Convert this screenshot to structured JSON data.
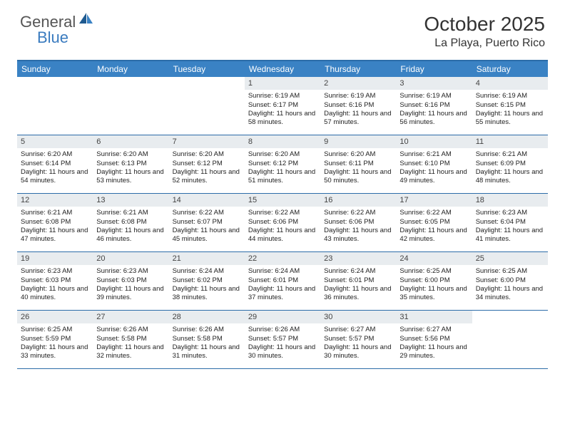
{
  "logo": {
    "part1": "General",
    "part2": "Blue"
  },
  "title": "October 2025",
  "location": "La Playa, Puerto Rico",
  "weekdays": [
    "Sunday",
    "Monday",
    "Tuesday",
    "Wednesday",
    "Thursday",
    "Friday",
    "Saturday"
  ],
  "colors": {
    "header_bar": "#3a82c4",
    "rule": "#2c6ca8",
    "daynum_bg": "#e8ecef",
    "logo_gray": "#555555",
    "logo_blue": "#3a7bbf"
  },
  "weeks": [
    [
      null,
      null,
      null,
      {
        "n": "1",
        "sunrise": "6:19 AM",
        "sunset": "6:17 PM",
        "dl": "11 hours and 58 minutes."
      },
      {
        "n": "2",
        "sunrise": "6:19 AM",
        "sunset": "6:16 PM",
        "dl": "11 hours and 57 minutes."
      },
      {
        "n": "3",
        "sunrise": "6:19 AM",
        "sunset": "6:16 PM",
        "dl": "11 hours and 56 minutes."
      },
      {
        "n": "4",
        "sunrise": "6:19 AM",
        "sunset": "6:15 PM",
        "dl": "11 hours and 55 minutes."
      }
    ],
    [
      {
        "n": "5",
        "sunrise": "6:20 AM",
        "sunset": "6:14 PM",
        "dl": "11 hours and 54 minutes."
      },
      {
        "n": "6",
        "sunrise": "6:20 AM",
        "sunset": "6:13 PM",
        "dl": "11 hours and 53 minutes."
      },
      {
        "n": "7",
        "sunrise": "6:20 AM",
        "sunset": "6:12 PM",
        "dl": "11 hours and 52 minutes."
      },
      {
        "n": "8",
        "sunrise": "6:20 AM",
        "sunset": "6:12 PM",
        "dl": "11 hours and 51 minutes."
      },
      {
        "n": "9",
        "sunrise": "6:20 AM",
        "sunset": "6:11 PM",
        "dl": "11 hours and 50 minutes."
      },
      {
        "n": "10",
        "sunrise": "6:21 AM",
        "sunset": "6:10 PM",
        "dl": "11 hours and 49 minutes."
      },
      {
        "n": "11",
        "sunrise": "6:21 AM",
        "sunset": "6:09 PM",
        "dl": "11 hours and 48 minutes."
      }
    ],
    [
      {
        "n": "12",
        "sunrise": "6:21 AM",
        "sunset": "6:08 PM",
        "dl": "11 hours and 47 minutes."
      },
      {
        "n": "13",
        "sunrise": "6:21 AM",
        "sunset": "6:08 PM",
        "dl": "11 hours and 46 minutes."
      },
      {
        "n": "14",
        "sunrise": "6:22 AM",
        "sunset": "6:07 PM",
        "dl": "11 hours and 45 minutes."
      },
      {
        "n": "15",
        "sunrise": "6:22 AM",
        "sunset": "6:06 PM",
        "dl": "11 hours and 44 minutes."
      },
      {
        "n": "16",
        "sunrise": "6:22 AM",
        "sunset": "6:06 PM",
        "dl": "11 hours and 43 minutes."
      },
      {
        "n": "17",
        "sunrise": "6:22 AM",
        "sunset": "6:05 PM",
        "dl": "11 hours and 42 minutes."
      },
      {
        "n": "18",
        "sunrise": "6:23 AM",
        "sunset": "6:04 PM",
        "dl": "11 hours and 41 minutes."
      }
    ],
    [
      {
        "n": "19",
        "sunrise": "6:23 AM",
        "sunset": "6:03 PM",
        "dl": "11 hours and 40 minutes."
      },
      {
        "n": "20",
        "sunrise": "6:23 AM",
        "sunset": "6:03 PM",
        "dl": "11 hours and 39 minutes."
      },
      {
        "n": "21",
        "sunrise": "6:24 AM",
        "sunset": "6:02 PM",
        "dl": "11 hours and 38 minutes."
      },
      {
        "n": "22",
        "sunrise": "6:24 AM",
        "sunset": "6:01 PM",
        "dl": "11 hours and 37 minutes."
      },
      {
        "n": "23",
        "sunrise": "6:24 AM",
        "sunset": "6:01 PM",
        "dl": "11 hours and 36 minutes."
      },
      {
        "n": "24",
        "sunrise": "6:25 AM",
        "sunset": "6:00 PM",
        "dl": "11 hours and 35 minutes."
      },
      {
        "n": "25",
        "sunrise": "6:25 AM",
        "sunset": "6:00 PM",
        "dl": "11 hours and 34 minutes."
      }
    ],
    [
      {
        "n": "26",
        "sunrise": "6:25 AM",
        "sunset": "5:59 PM",
        "dl": "11 hours and 33 minutes."
      },
      {
        "n": "27",
        "sunrise": "6:26 AM",
        "sunset": "5:58 PM",
        "dl": "11 hours and 32 minutes."
      },
      {
        "n": "28",
        "sunrise": "6:26 AM",
        "sunset": "5:58 PM",
        "dl": "11 hours and 31 minutes."
      },
      {
        "n": "29",
        "sunrise": "6:26 AM",
        "sunset": "5:57 PM",
        "dl": "11 hours and 30 minutes."
      },
      {
        "n": "30",
        "sunrise": "6:27 AM",
        "sunset": "5:57 PM",
        "dl": "11 hours and 30 minutes."
      },
      {
        "n": "31",
        "sunrise": "6:27 AM",
        "sunset": "5:56 PM",
        "dl": "11 hours and 29 minutes."
      },
      null
    ]
  ],
  "labels": {
    "sunrise": "Sunrise:",
    "sunset": "Sunset:",
    "daylight": "Daylight:"
  }
}
